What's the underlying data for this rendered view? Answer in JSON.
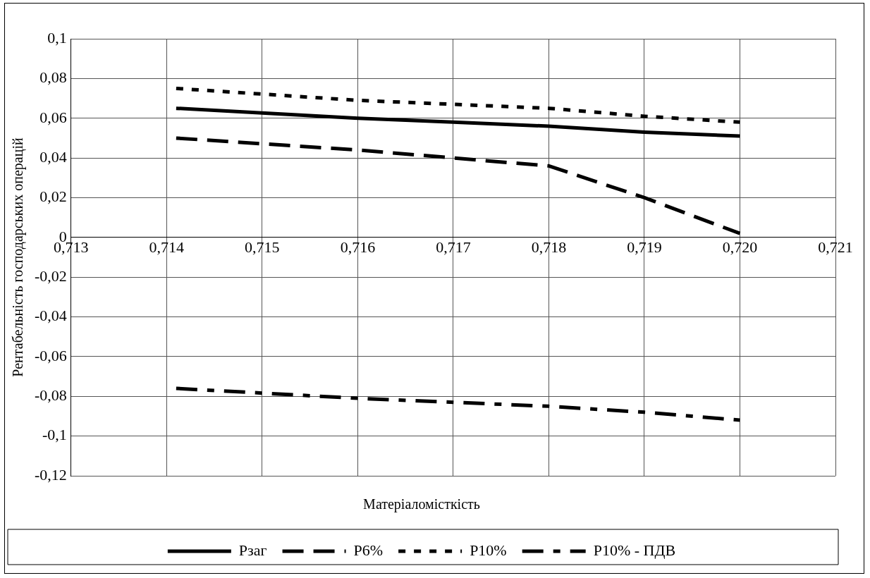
{
  "chart_data": {
    "type": "line",
    "xlabel": "Матеріаломісткість",
    "ylabel": "Рентабельність господарських операцій",
    "xlim": [
      0.713,
      0.721
    ],
    "xticks": [
      {
        "value": 0.713,
        "label": "0,713"
      },
      {
        "value": 0.714,
        "label": "0,714"
      },
      {
        "value": 0.715,
        "label": "0,715"
      },
      {
        "value": 0.716,
        "label": "0,716"
      },
      {
        "value": 0.717,
        "label": "0,717"
      },
      {
        "value": 0.718,
        "label": "0,718"
      },
      {
        "value": 0.719,
        "label": "0,719"
      },
      {
        "value": 0.72,
        "label": "0,720"
      },
      {
        "value": 0.721,
        "label": "0,721"
      }
    ],
    "ylim": [
      -0.12,
      0.1
    ],
    "yticks": [
      {
        "value": -0.12,
        "label": "-0,12"
      },
      {
        "value": -0.1,
        "label": "-0,1"
      },
      {
        "value": -0.08,
        "label": "-0,08"
      },
      {
        "value": -0.06,
        "label": "-0,06"
      },
      {
        "value": -0.04,
        "label": "-0,04"
      },
      {
        "value": -0.02,
        "label": "-0,02"
      },
      {
        "value": 0,
        "label": "0"
      },
      {
        "value": 0.02,
        "label": "0,02"
      },
      {
        "value": 0.04,
        "label": "0,04"
      },
      {
        "value": 0.06,
        "label": "0,06"
      },
      {
        "value": 0.08,
        "label": "0,08"
      },
      {
        "value": 0.1,
        "label": "0,1"
      }
    ],
    "x": [
      0.7141,
      0.716,
      0.717,
      0.718,
      0.719,
      0.72
    ],
    "grid": true,
    "legend": "bottom",
    "marker": "none",
    "series": [
      {
        "name": "Рзаг",
        "color": "#000000",
        "line_style": "solid",
        "values": [
          0.065,
          0.06,
          0.058,
          0.056,
          0.053,
          0.051
        ]
      },
      {
        "name": "Р6%",
        "color": "#000000",
        "line_style": "dashed",
        "values": [
          0.05,
          0.044,
          0.04,
          0.036,
          0.02,
          0.002
        ]
      },
      {
        "name": "Р10%",
        "color": "#000000",
        "line_style": "dotted",
        "values": [
          0.075,
          0.069,
          0.067,
          0.065,
          0.061,
          0.058
        ]
      },
      {
        "name": "Р10% - ПДВ",
        "color": "#000000",
        "line_style": "dashdot",
        "values": [
          -0.076,
          -0.081,
          -0.083,
          -0.085,
          -0.088,
          -0.092
        ]
      }
    ]
  }
}
